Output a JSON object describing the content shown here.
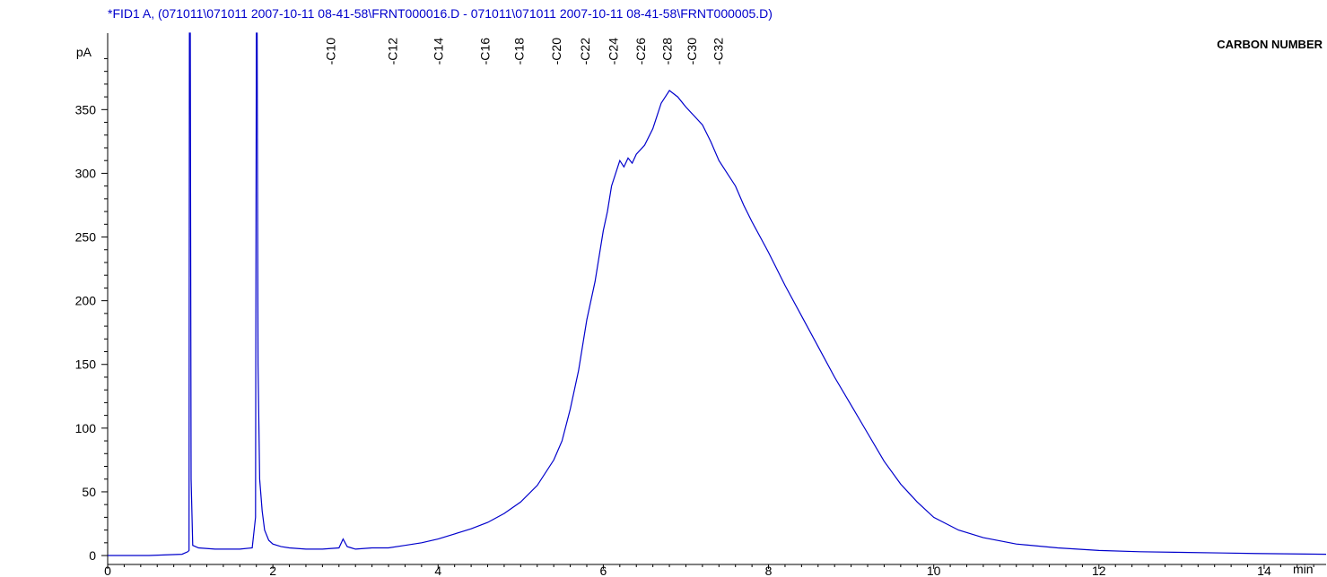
{
  "chart_data": {
    "type": "line",
    "title": "*FID1 A,  (071011\\071011 2007-10-11 08-41-58\\FRNT000016.D - 071011\\071011 2007-10-11 08-41-58\\FRNT000005.D)",
    "ylabel": "pA",
    "xunit": "min",
    "legend_label": "CARBON NUMBER",
    "xlim": [
      0,
      14.75
    ],
    "ylim": [
      -7,
      410
    ],
    "x_ticks": [
      0,
      2,
      4,
      6,
      8,
      10,
      12,
      14
    ],
    "y_ticks": [
      0,
      50,
      100,
      150,
      200,
      250,
      300,
      350
    ],
    "series_color": "#0000cc",
    "title_color": "#0000cc",
    "carbon_markers": [
      {
        "label": "-C10",
        "x": 2.7
      },
      {
        "label": "-C12",
        "x": 3.45
      },
      {
        "label": "-C14",
        "x": 4.0
      },
      {
        "label": "-C16",
        "x": 4.57
      },
      {
        "label": "-C18",
        "x": 4.98
      },
      {
        "label": "-C20",
        "x": 5.43
      },
      {
        "label": "-C22",
        "x": 5.78
      },
      {
        "label": "-C24",
        "x": 6.12
      },
      {
        "label": "-C26",
        "x": 6.45
      },
      {
        "label": "-C28",
        "x": 6.77
      },
      {
        "label": "-C30",
        "x": 7.07
      },
      {
        "label": "-C32",
        "x": 7.39
      }
    ],
    "series": [
      {
        "x": [
          0,
          0.5,
          0.9,
          0.97,
          0.985,
          0.99,
          1.0,
          1.01,
          1.03,
          1.1,
          1.3,
          1.6,
          1.75,
          1.79,
          1.8,
          1.81,
          1.82,
          1.84,
          1.87,
          1.9,
          1.95,
          2.0,
          2.1,
          2.2,
          2.4,
          2.6,
          2.8,
          2.85,
          2.9,
          2.95,
          3.0,
          3.2,
          3.4,
          3.6,
          3.8,
          4.0,
          4.2,
          4.4,
          4.6,
          4.8,
          5.0,
          5.2,
          5.4,
          5.5,
          5.6,
          5.7,
          5.8,
          5.9,
          6.0,
          6.05,
          6.1,
          6.15,
          6.2,
          6.25,
          6.3,
          6.35,
          6.4,
          6.5,
          6.6,
          6.7,
          6.8,
          6.9,
          7.0,
          7.1,
          7.2,
          7.3,
          7.4,
          7.5,
          7.6,
          7.7,
          7.8,
          7.9,
          8.0,
          8.2,
          8.4,
          8.6,
          8.8,
          9.0,
          9.2,
          9.4,
          9.6,
          9.8,
          10.0,
          10.3,
          10.6,
          11.0,
          11.5,
          12.0,
          12.5,
          13.0,
          13.5,
          14.0,
          14.75
        ],
        "y": [
          0,
          0,
          1,
          3,
          4,
          410,
          410,
          60,
          8,
          6,
          5,
          5,
          6,
          30,
          410,
          410,
          150,
          60,
          35,
          20,
          12,
          9,
          7,
          6,
          5,
          5,
          6,
          13,
          7,
          6,
          5,
          6,
          6,
          8,
          10,
          13,
          17,
          21,
          26,
          33,
          42,
          55,
          75,
          90,
          115,
          145,
          185,
          215,
          255,
          270,
          290,
          300,
          310,
          305,
          312,
          308,
          315,
          322,
          335,
          355,
          365,
          360,
          352,
          345,
          338,
          325,
          310,
          300,
          290,
          275,
          262,
          250,
          238,
          212,
          188,
          164,
          140,
          118,
          96,
          74,
          56,
          42,
          30,
          20,
          14,
          9,
          6,
          4,
          3,
          2.5,
          2,
          1.5,
          1
        ]
      }
    ]
  }
}
